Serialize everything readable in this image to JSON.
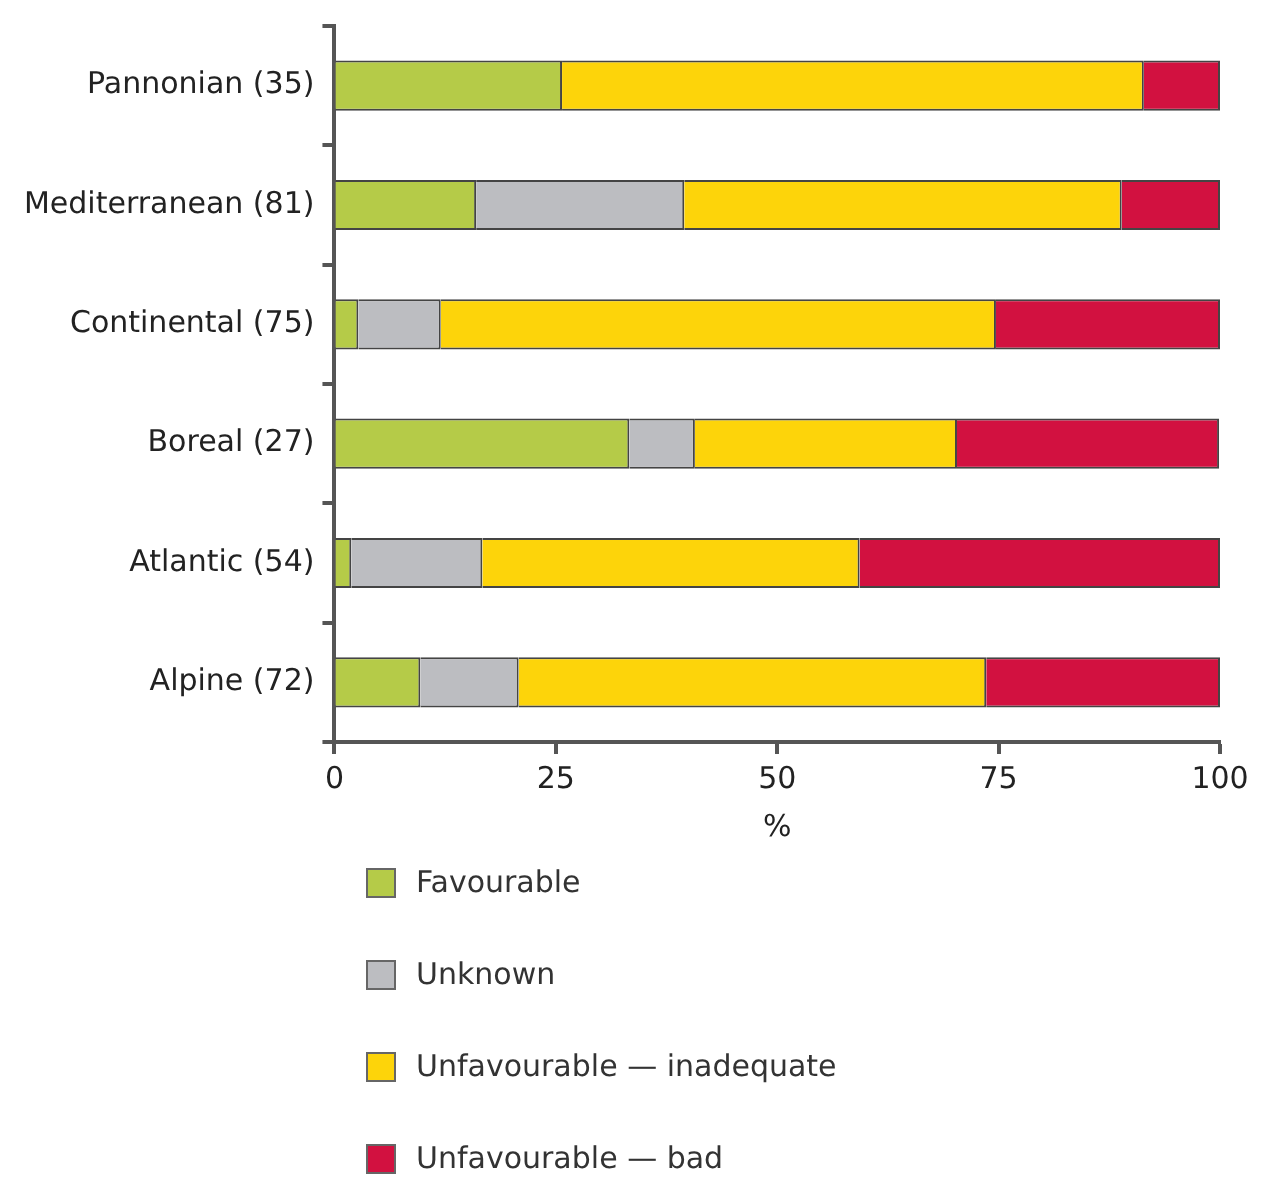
{
  "chart_data": {
    "type": "bar",
    "orientation": "horizontal",
    "stacked": true,
    "xlabel": "%",
    "categories": [
      "Pannonian (35)",
      "Mediterranean (81)",
      "Continental (75)",
      "Boreal (27)",
      "Atlantic (54)",
      "Alpine (72)"
    ],
    "series": [
      {
        "name": "Favourable",
        "color": "#b5cb48",
        "values": [
          25.7,
          16.0,
          2.7,
          33.3,
          1.9,
          9.7
        ]
      },
      {
        "name": "Unknown",
        "color": "#bcbdc1",
        "values": [
          0,
          23.5,
          9.3,
          7.4,
          14.8,
          11.1
        ]
      },
      {
        "name": "Unfavourable — inadequate",
        "color": "#fdd40a",
        "values": [
          65.7,
          49.4,
          62.7,
          29.6,
          42.6,
          52.8
        ]
      },
      {
        "name": "Unfavourable — bad",
        "color": "#d21140",
        "values": [
          8.6,
          11.1,
          25.3,
          29.6,
          40.7,
          26.4
        ]
      }
    ],
    "xlim": [
      0,
      100
    ],
    "xticks": [
      0,
      25,
      50,
      75,
      100
    ],
    "grid": false,
    "legend": "bottom"
  }
}
